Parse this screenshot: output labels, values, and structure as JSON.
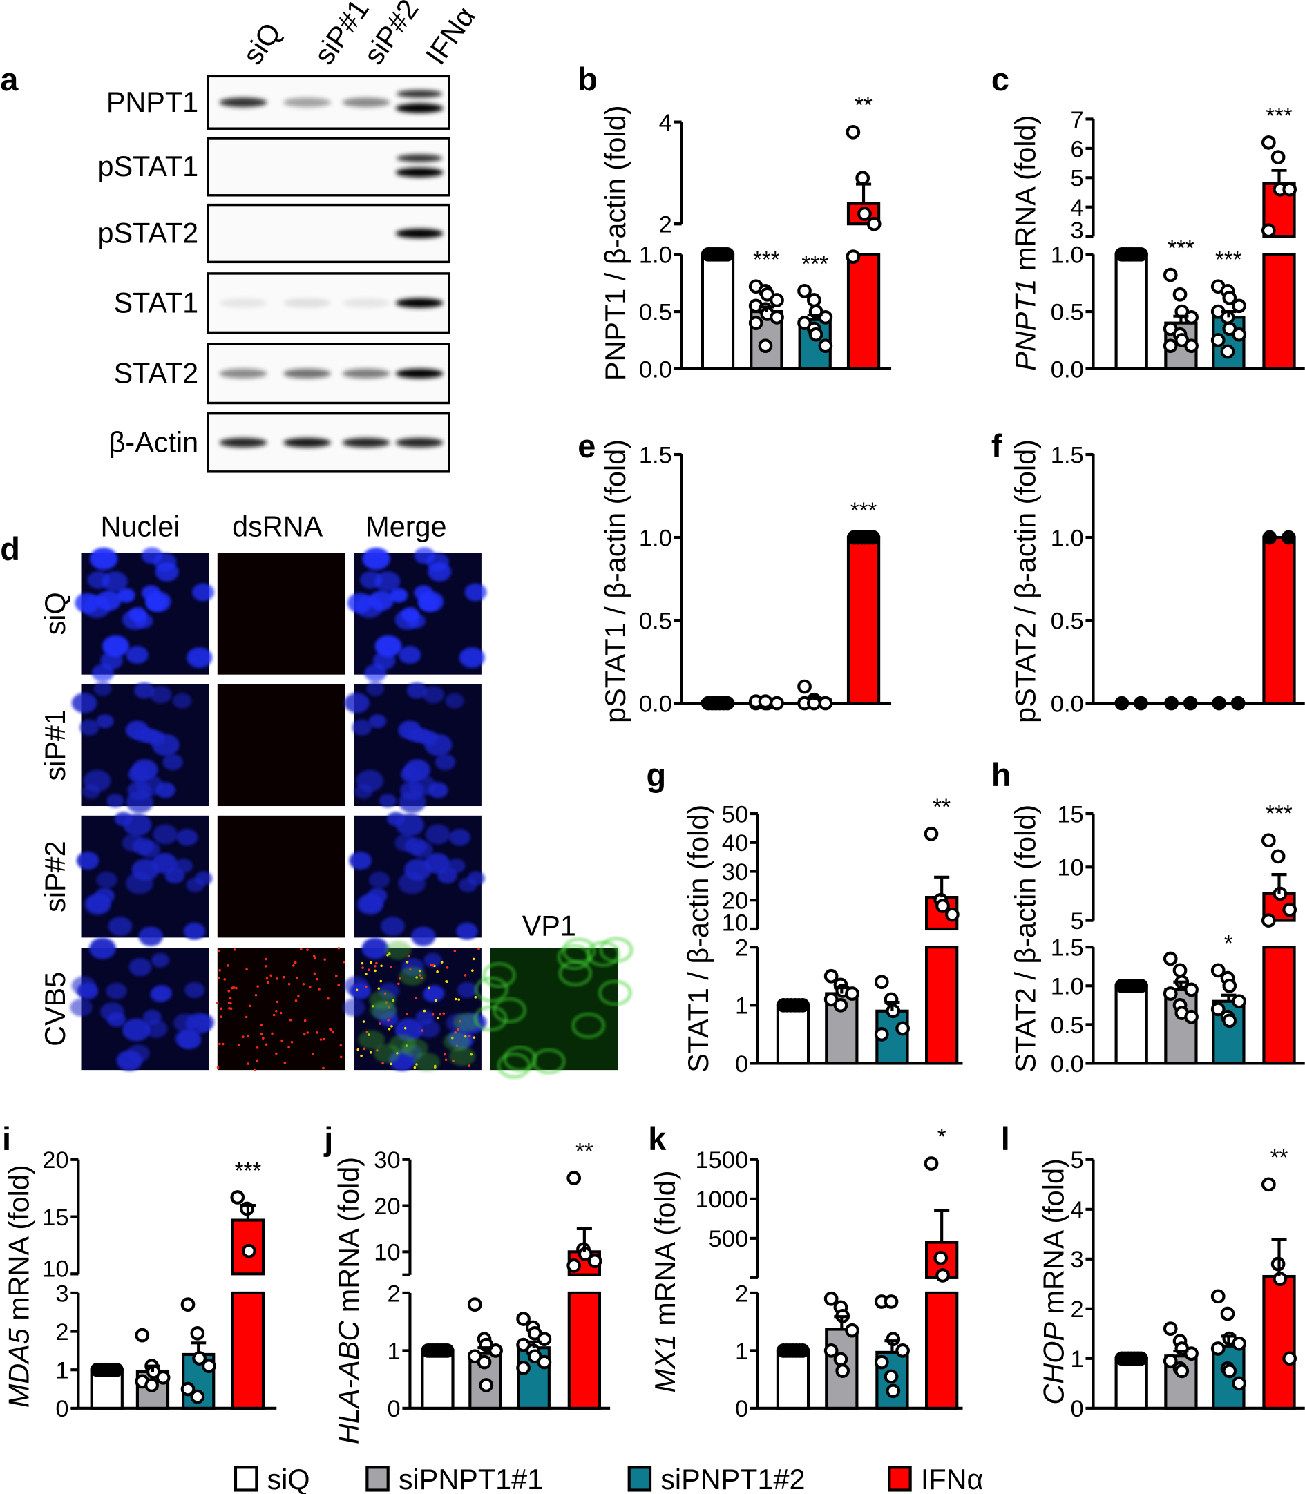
{
  "colors": {
    "siQ": "#ffffff",
    "siPNPT1#1": "#a4a4a8",
    "siPNPT1#2": "#0e7b8e",
    "IFNa": "#ff0000"
  },
  "panel_letters": {
    "a": "a",
    "b": "b",
    "c": "c",
    "d": "d",
    "e": "e",
    "f": "f",
    "g": "g",
    "h": "h",
    "i": "i",
    "j": "j",
    "k": "k",
    "l": "l"
  },
  "blot": {
    "lanes": [
      "siQ",
      "siP#1",
      "siP#2",
      "IFNα"
    ],
    "rows": [
      {
        "label": "PNPT1",
        "band_intensity": [
          0.8,
          0.35,
          0.45,
          1.0
        ],
        "doublet": [
          false,
          false,
          false,
          true
        ]
      },
      {
        "label": "pSTAT1",
        "band_intensity": [
          0,
          0,
          0,
          1.0
        ],
        "doublet": [
          false,
          false,
          false,
          true
        ]
      },
      {
        "label": "pSTAT2",
        "band_intensity": [
          0,
          0,
          0,
          1.0
        ],
        "doublet": [
          false,
          false,
          false,
          false
        ]
      },
      {
        "label": "STAT1",
        "band_intensity": [
          0.08,
          0.1,
          0.08,
          1.0
        ],
        "doublet": [
          false,
          false,
          false,
          false
        ]
      },
      {
        "label": "STAT2",
        "band_intensity": [
          0.45,
          0.55,
          0.5,
          1.0
        ],
        "doublet": [
          false,
          false,
          false,
          false
        ]
      },
      {
        "label": "β-Actin",
        "band_intensity": [
          0.85,
          0.9,
          0.85,
          0.85
        ],
        "doublet": [
          false,
          false,
          false,
          false
        ]
      }
    ]
  },
  "microscopy": {
    "columns": [
      "Nuclei",
      "dsRNA",
      "Merge"
    ],
    "extra_column": "VP1",
    "rows": [
      "siQ",
      "siP#1",
      "siP#2",
      "CVB5"
    ]
  },
  "legend": [
    "siQ",
    "siPNPT1#1",
    "siPNPT1#2",
    "IFNα"
  ],
  "chart_data": [
    {
      "id": "b",
      "type": "bar",
      "ylabel": {
        "gene": "",
        "rest": "PNPT1 / β-actin (fold)"
      },
      "categories": [
        "siQ",
        "siPNPT1#1",
        "siPNPT1#2",
        "IFNα"
      ],
      "ylim_lower": [
        0,
        1
      ],
      "ylim_upper": [
        2,
        4
      ],
      "ticks_lower": [
        "0.0",
        "0.5",
        "1.0"
      ],
      "ticks_upper": [
        "2",
        "4"
      ],
      "means": [
        1,
        0.5,
        0.43,
        2.4
      ],
      "sem": [
        0,
        0.04,
        0.04,
        0.38
      ],
      "points": [
        [
          1,
          1,
          1,
          1,
          1,
          1,
          1,
          1,
          1,
          1
        ],
        [
          0.72,
          0.68,
          0.65,
          0.6,
          0.55,
          0.52,
          0.48,
          0.45,
          0.4,
          0.2
        ],
        [
          0.68,
          0.6,
          0.5,
          0.45,
          0.4,
          0.35,
          0.3,
          0.2
        ],
        [
          3.8,
          2.9,
          2.2,
          1.9,
          0.98
        ]
      ],
      "significance": [
        "",
        "***",
        "***",
        "**"
      ]
    },
    {
      "id": "c",
      "type": "bar",
      "ylabel": {
        "gene": "PNPT1",
        "rest": " mRNA (fold)"
      },
      "categories": [
        "siQ",
        "siPNPT1#1",
        "siPNPT1#2",
        "IFNα"
      ],
      "ylim_lower": [
        0,
        1
      ],
      "ylim_upper": [
        3,
        7
      ],
      "ticks_lower": [
        "0.0",
        "0.5",
        "1.0"
      ],
      "ticks_upper": [
        "3",
        "4",
        "5",
        "6",
        "7"
      ],
      "means": [
        1,
        0.4,
        0.45,
        4.8
      ],
      "sem": [
        0,
        0.06,
        0.05,
        0.45
      ],
      "points": [
        [
          1,
          1,
          1,
          1,
          1,
          1,
          1,
          1,
          1
        ],
        [
          0.82,
          0.65,
          0.5,
          0.45,
          0.35,
          0.3,
          0.25,
          0.2,
          0.2
        ],
        [
          0.72,
          0.68,
          0.62,
          0.55,
          0.5,
          0.45,
          0.35,
          0.3,
          0.25,
          0.15
        ],
        [
          6.2,
          5.7,
          4.6,
          4.6,
          3.2
        ]
      ],
      "significance": [
        "",
        "***",
        "***",
        "***"
      ]
    },
    {
      "id": "e",
      "type": "bar",
      "ylabel": {
        "gene": "",
        "rest": "pSTAT1 / β-actin (fold)"
      },
      "categories": [
        "siQ",
        "siPNPT1#1",
        "siPNPT1#2",
        "IFNα"
      ],
      "ylim": [
        0,
        1.5
      ],
      "ticks": [
        "0.0",
        "0.5",
        "1.0",
        "1.5"
      ],
      "means": [
        0.01,
        0.01,
        0.02,
        1.0
      ],
      "sem": [
        0,
        0,
        0.01,
        0
      ],
      "points": [
        [
          0,
          0,
          0,
          0,
          0,
          0
        ],
        [
          0,
          0,
          0,
          0,
          0.01,
          0.01
        ],
        [
          0.1,
          0.02,
          0.01,
          0,
          0,
          0
        ],
        [
          1,
          1,
          1,
          1,
          1,
          1
        ]
      ],
      "significance": [
        "",
        "",
        "",
        "***"
      ]
    },
    {
      "id": "f",
      "type": "bar",
      "ylabel": {
        "gene": "",
        "rest": "pSTAT2 / β-actin (fold)"
      },
      "categories": [
        "siQ",
        "siPNPT1#1",
        "siPNPT1#2",
        "IFNα"
      ],
      "ylim": [
        0,
        1.5
      ],
      "ticks": [
        "0.0",
        "0.5",
        "1.0",
        "1.5"
      ],
      "means": [
        0,
        0,
        0,
        1.0
      ],
      "sem": [
        0,
        0,
        0,
        0
      ],
      "points": [
        [
          0,
          0
        ],
        [
          0,
          0
        ],
        [
          0,
          0
        ],
        [
          1,
          1
        ]
      ],
      "significance": [
        "",
        "",
        "",
        ""
      ]
    },
    {
      "id": "g",
      "type": "bar",
      "ylabel": {
        "gene": "",
        "rest": "STAT1 / β-actin (fold)"
      },
      "categories": [
        "siQ",
        "siPNPT1#1",
        "siPNPT1#2",
        "IFNα"
      ],
      "ylim_lower": [
        0,
        2
      ],
      "ylim_upper": [
        10,
        50
      ],
      "ticks_lower": [
        "0",
        "1",
        "2"
      ],
      "ticks_upper": [
        "10",
        "20",
        "30",
        "40",
        "50"
      ],
      "means": [
        1,
        1.2,
        0.9,
        21
      ],
      "sem": [
        0,
        0.1,
        0.15,
        7
      ],
      "points": [
        [
          1,
          1,
          1,
          1,
          1,
          1
        ],
        [
          1.5,
          1.35,
          1.25,
          1.2,
          1.1,
          1.0
        ],
        [
          1.4,
          1.1,
          0.9,
          0.6,
          0.5
        ],
        [
          43,
          20,
          18,
          15
        ]
      ],
      "significance": [
        "",
        "",
        "",
        "**"
      ]
    },
    {
      "id": "h",
      "type": "bar",
      "ylabel": {
        "gene": "",
        "rest": "STAT2 / β-actin (fold)"
      },
      "categories": [
        "siQ",
        "siPNPT1#1",
        "siPNPT1#2",
        "IFNα"
      ],
      "ylim_lower": [
        0,
        1.5
      ],
      "ylim_upper": [
        5,
        15
      ],
      "ticks_lower": [
        "0.0",
        "0.5",
        "1.0",
        "1.5"
      ],
      "ticks_upper": [
        "5",
        "10",
        "15"
      ],
      "means": [
        1,
        0.95,
        0.8,
        7.5
      ],
      "sem": [
        0,
        0.1,
        0.08,
        1.8
      ],
      "points": [
        [
          1,
          1,
          1,
          1,
          1,
          1,
          1,
          1
        ],
        [
          1.35,
          1.2,
          1.05,
          0.95,
          0.9,
          0.75,
          0.65,
          0.6
        ],
        [
          1.2,
          1.1,
          1.0,
          0.8,
          0.7,
          0.6,
          0.55
        ],
        [
          12.5,
          11,
          7.5,
          6,
          5
        ]
      ],
      "significance": [
        "",
        "",
        "*",
        "***"
      ]
    },
    {
      "id": "i",
      "type": "bar",
      "ylabel": {
        "gene": "MDA5",
        "rest": " mRNA (fold)"
      },
      "categories": [
        "siQ",
        "siPNPT1#1",
        "siPNPT1#2",
        "IFNα"
      ],
      "ylim_lower": [
        0,
        3
      ],
      "ylim_upper": [
        10,
        20
      ],
      "ticks_lower": [
        "0",
        "1",
        "2",
        "3"
      ],
      "ticks_upper": [
        "10",
        "15",
        "20"
      ],
      "means": [
        1,
        0.95,
        1.4,
        14.7
      ],
      "sem": [
        0,
        0.15,
        0.3,
        1.3
      ],
      "points": [
        [
          1,
          1,
          1,
          1,
          1,
          1
        ],
        [
          1.9,
          1.1,
          0.95,
          0.8,
          0.7,
          0.6
        ],
        [
          2.7,
          1.95,
          1.3,
          1.1,
          0.5,
          0.3
        ],
        [
          16.7,
          15.7,
          12.0
        ]
      ],
      "significance": [
        "",
        "",
        "",
        "***"
      ]
    },
    {
      "id": "j",
      "type": "bar",
      "ylabel": {
        "gene": "HLA-ABC",
        "rest": " mRNA (fold)"
      },
      "categories": [
        "siQ",
        "siPNPT1#1",
        "siPNPT1#2",
        "IFNα"
      ],
      "ylim_lower": [
        0,
        2
      ],
      "ylim_upper": [
        5,
        30
      ],
      "ticks_lower": [
        "0",
        "1",
        "2"
      ],
      "ticks_upper": [
        "10",
        "20",
        "30"
      ],
      "means": [
        1,
        0.95,
        1.05,
        10
      ],
      "sem": [
        0,
        0.1,
        0.1,
        5
      ],
      "points": [
        [
          1,
          1,
          1,
          1,
          1,
          1,
          1,
          1,
          1
        ],
        [
          1.8,
          1.2,
          1.1,
          1.0,
          0.9,
          0.8,
          0.4
        ],
        [
          1.55,
          1.4,
          1.3,
          1.2,
          1.1,
          1.0,
          0.9,
          0.8,
          0.7
        ],
        [
          26,
          10.5,
          9.5,
          8,
          7
        ]
      ],
      "significance": [
        "",
        "",
        "",
        "**"
      ]
    },
    {
      "id": "k",
      "type": "bar",
      "ylabel": {
        "gene": "MX1",
        "rest": " mRNA (fold)"
      },
      "categories": [
        "siQ",
        "siPNPT1#1",
        "siPNPT1#2",
        "IFNα"
      ],
      "ylim_lower": [
        0,
        2
      ],
      "ylim_upper": [
        0,
        1500
      ],
      "ticks_lower": [
        "0",
        "1",
        "2"
      ],
      "ticks_upper": [
        "500",
        "1000",
        "1500"
      ],
      "means": [
        1,
        1.37,
        0.97,
        450
      ],
      "sem": [
        0,
        0.22,
        0.2,
        400
      ],
      "points": [
        [
          1,
          1,
          1,
          1,
          1,
          1,
          1
        ],
        [
          1.9,
          1.75,
          1.6,
          1.35,
          1.0,
          0.85,
          0.65
        ],
        [
          1.85,
          1.85,
          1.2,
          1.0,
          0.8,
          0.55,
          0.3
        ],
        [
          1450,
          250,
          30
        ]
      ],
      "significance": [
        "",
        "",
        "",
        "*"
      ]
    },
    {
      "id": "l",
      "type": "bar",
      "ylabel": {
        "gene": "CHOP",
        "rest": " mRNA (fold)"
      },
      "categories": [
        "siQ",
        "siPNPT1#1",
        "siPNPT1#2",
        "IFNα"
      ],
      "ylim": [
        0,
        5
      ],
      "ticks": [
        "0",
        "1",
        "2",
        "3",
        "4",
        "5"
      ],
      "means": [
        1,
        1.05,
        1.25,
        2.65
      ],
      "sem": [
        0,
        0.1,
        0.2,
        0.75
      ],
      "points": [
        [
          1,
          1,
          1,
          1,
          1,
          1,
          1
        ],
        [
          1.6,
          1.35,
          1.2,
          1.1,
          0.95,
          0.8,
          0.75
        ],
        [
          2.25,
          1.9,
          1.4,
          1.3,
          1.2,
          0.8,
          0.75,
          0.5
        ],
        [
          4.5,
          2.9,
          2.6,
          1.0
        ]
      ],
      "significance": [
        "",
        "",
        "",
        "**"
      ]
    }
  ]
}
